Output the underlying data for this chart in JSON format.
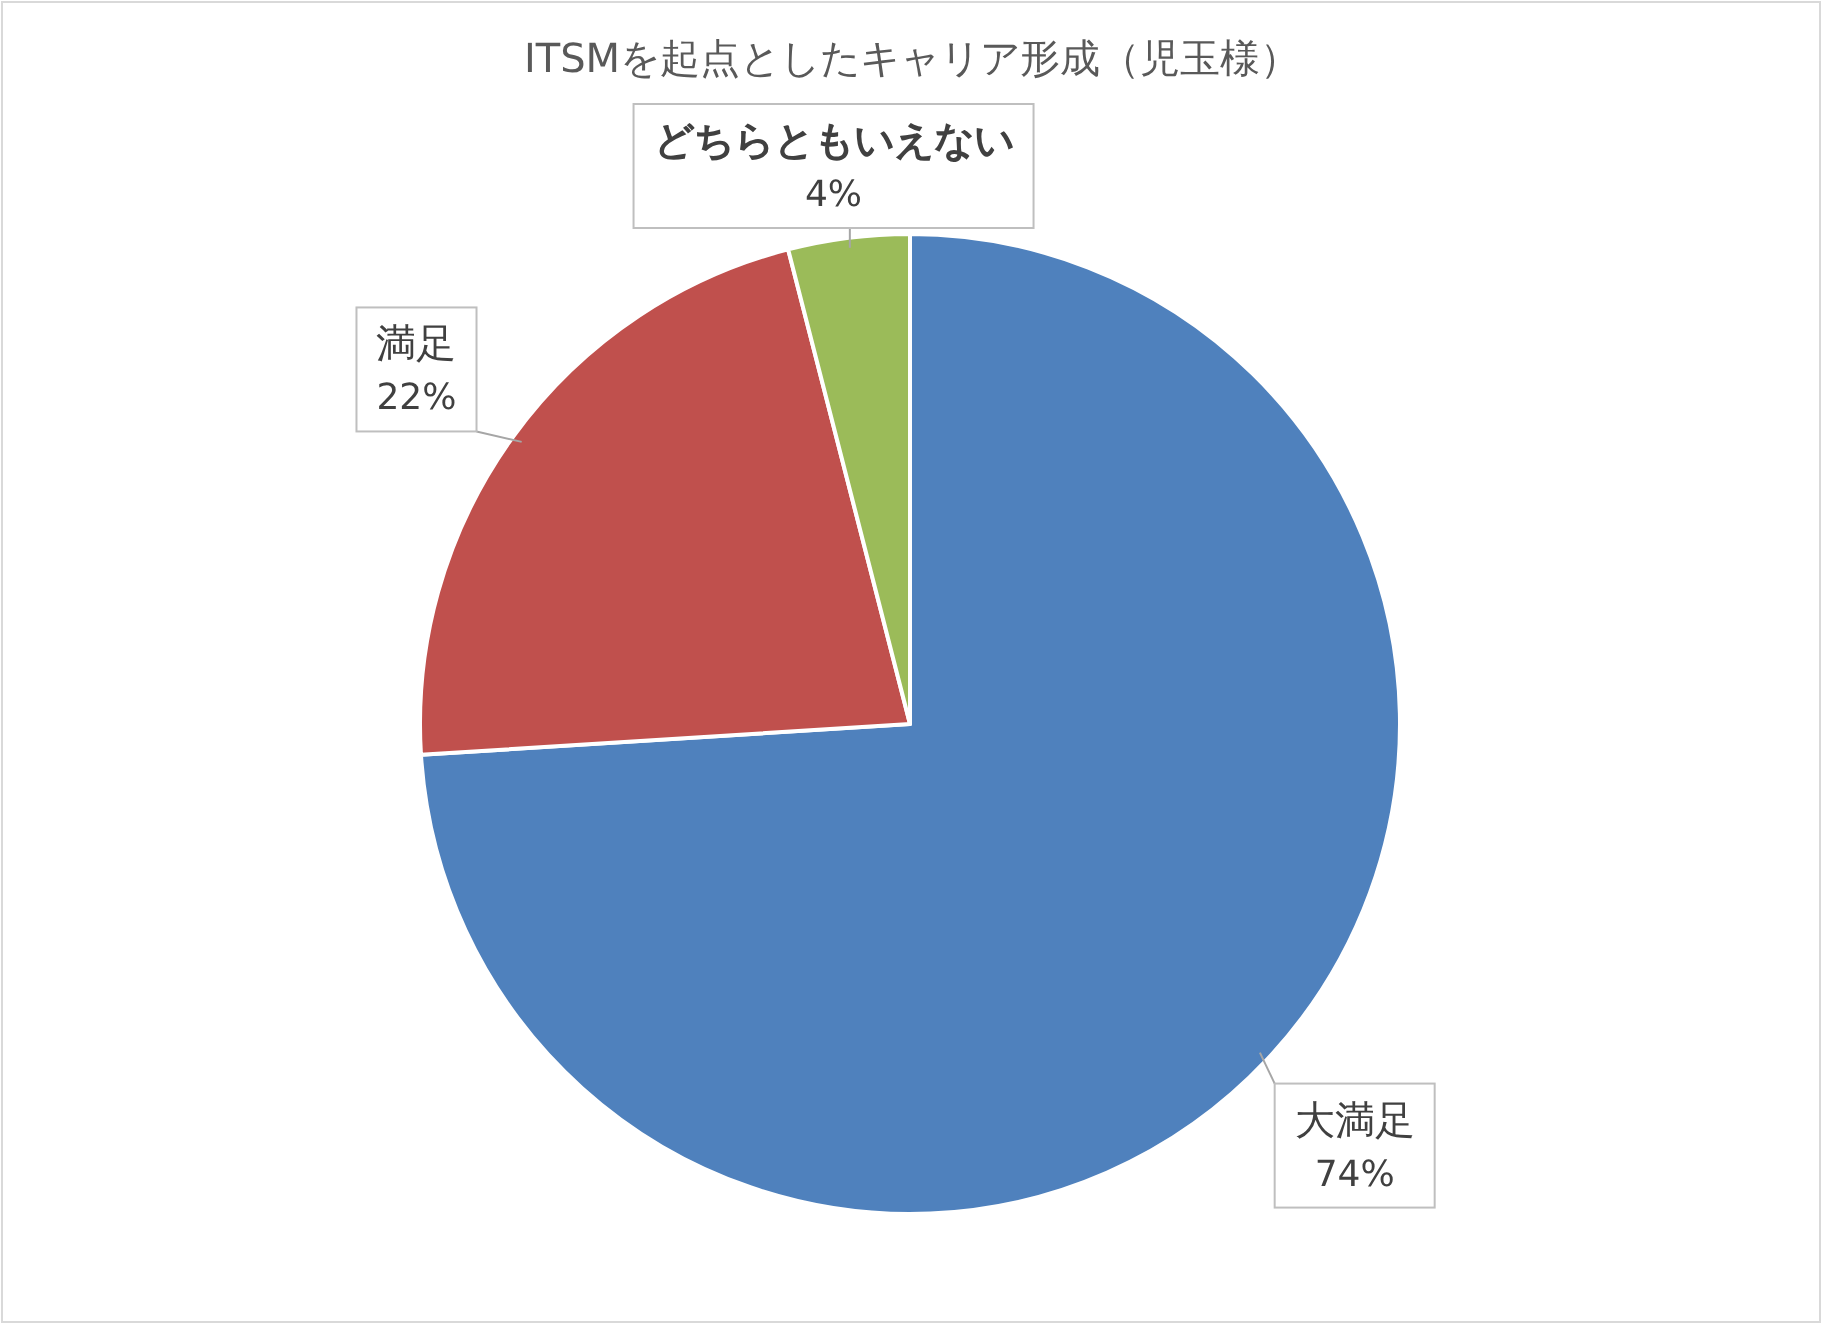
{
  "chart_data": {
    "type": "pie",
    "title": "ITSMを起点としたキャリア形成（児玉様）",
    "categories": [
      "大満足",
      "満足",
      "どちらともいえない"
    ],
    "values": [
      74,
      22,
      4
    ],
    "colors": [
      "#4f81bd",
      "#c0504d",
      "#9bbb59"
    ],
    "value_labels": [
      "74%",
      "22%",
      "4%"
    ]
  }
}
